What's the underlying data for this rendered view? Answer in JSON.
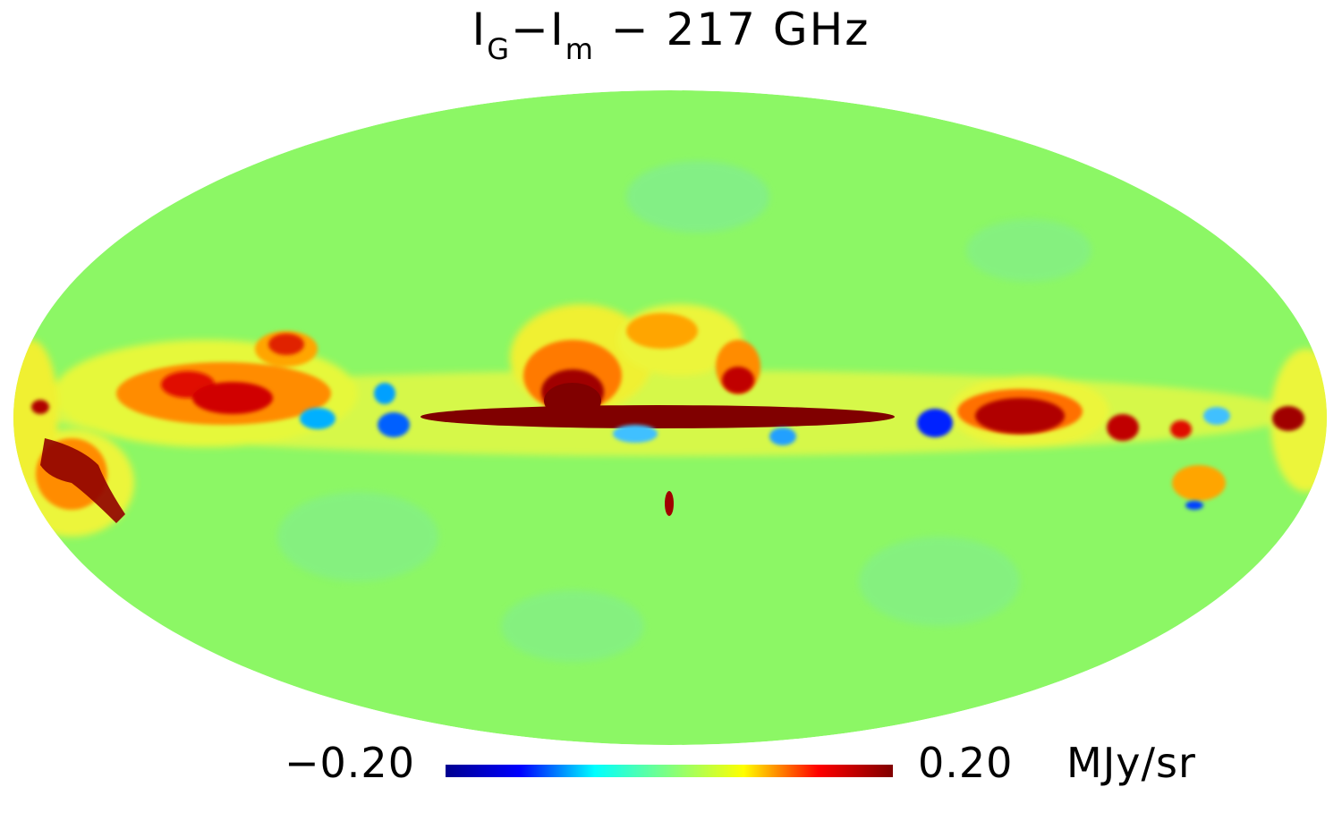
{
  "title": {
    "main_1": "I",
    "sub_1": "G",
    "dash": "−",
    "main_2": "I",
    "sub_2": "m",
    "rest": " − 217 GHz"
  },
  "colorbar": {
    "min_label": "−0.20",
    "max_label": "0.20",
    "unit": "MJy/sr",
    "min_value": -0.2,
    "max_value": 0.2,
    "colormap": [
      "#00008f",
      "#0000ff",
      "#00ffff",
      "#80ff80",
      "#ffff00",
      "#ff0000",
      "#800000"
    ]
  },
  "map": {
    "projection": "mollweide",
    "background_color": "#8cf765",
    "saturated_high_color": "#800000",
    "saturated_low_color": "#000080"
  }
}
